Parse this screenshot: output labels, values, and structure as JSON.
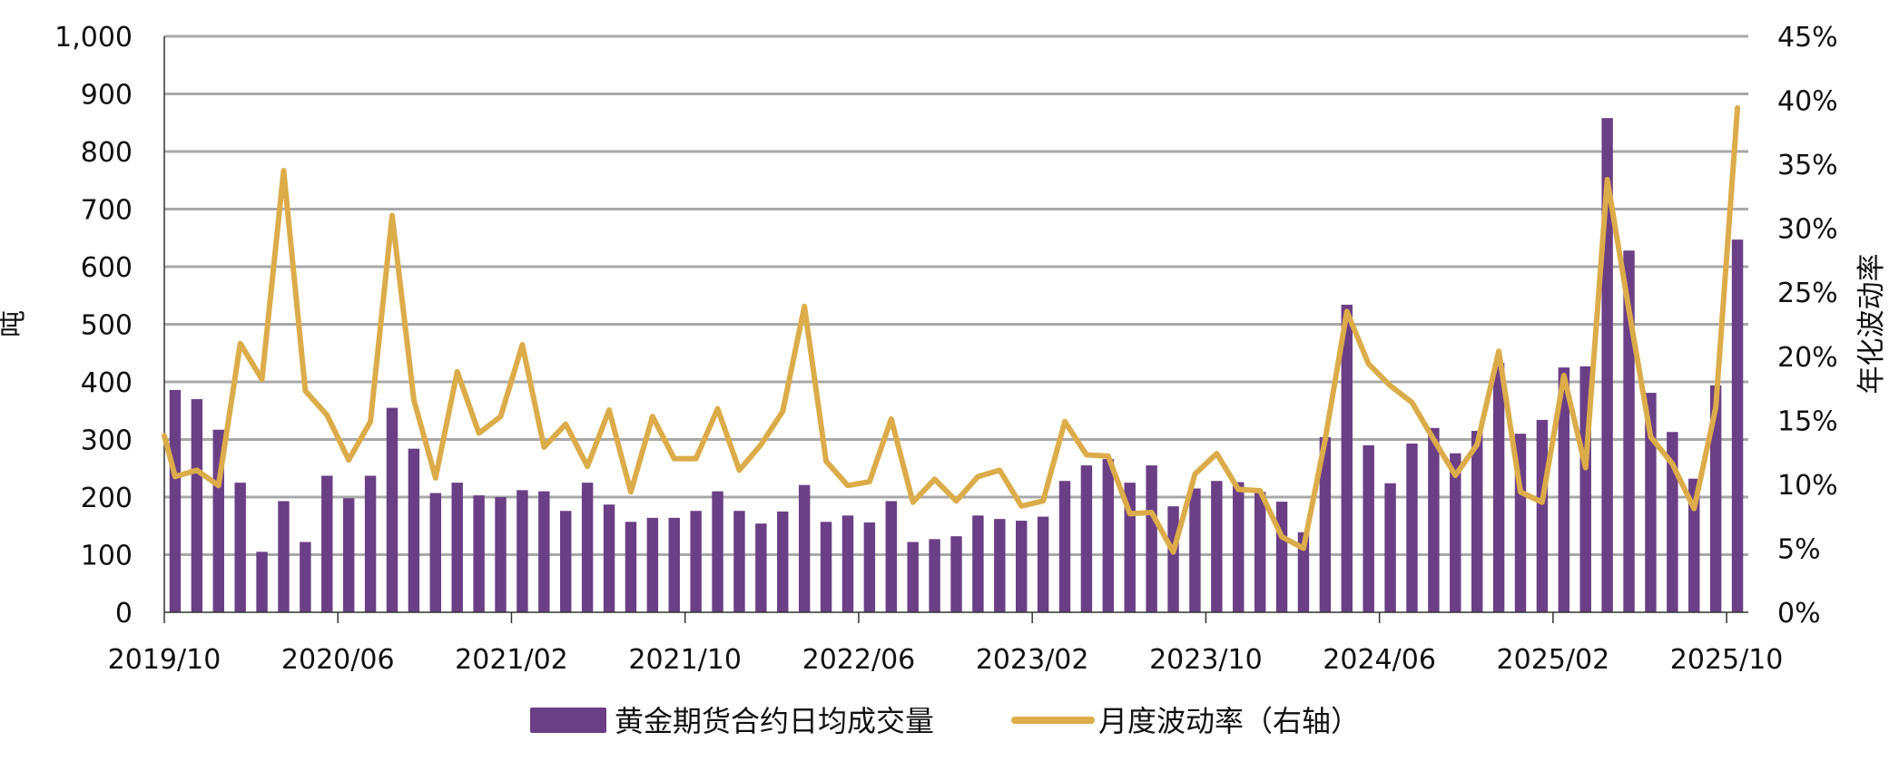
{
  "chart_data": {
    "type": "bar+line",
    "title": "",
    "ylabel_left": "吨",
    "ylabel_right": "年化波动率",
    "ylim_left": [
      0,
      1000
    ],
    "yticks_left": [
      "0",
      "100",
      "200",
      "300",
      "400",
      "500",
      "600",
      "700",
      "800",
      "900",
      "1,000"
    ],
    "ylim_right": [
      0,
      45
    ],
    "yticks_right": [
      "0%",
      "5%",
      "10%",
      "15%",
      "20%",
      "25%",
      "30%",
      "35%",
      "40%",
      "45%"
    ],
    "xtick_labels": [
      "2019/10",
      "2020/06",
      "2021/02",
      "2021/10",
      "2022/06",
      "2023/02",
      "2023/10",
      "2024/06",
      "2025/02",
      "2025/10"
    ],
    "grid": true,
    "legend_position": "bottom",
    "categories": [
      "2019/10",
      "2019/11",
      "2019/12",
      "2020/01",
      "2020/02",
      "2020/03",
      "2020/04",
      "2020/05",
      "2020/06",
      "2020/07",
      "2020/08",
      "2020/09",
      "2020/10",
      "2020/11",
      "2020/12",
      "2021/01",
      "2021/02",
      "2021/03",
      "2021/04",
      "2021/05",
      "2021/06",
      "2021/07",
      "2021/08",
      "2021/09",
      "2021/10",
      "2021/11",
      "2021/12",
      "2022/01",
      "2022/02",
      "2022/03",
      "2022/04",
      "2022/05",
      "2022/06",
      "2022/07",
      "2022/08",
      "2022/09",
      "2022/10",
      "2022/11",
      "2022/12",
      "2023/01",
      "2023/02",
      "2023/03",
      "2023/04",
      "2023/05",
      "2023/06",
      "2023/07",
      "2023/08",
      "2023/09",
      "2023/10",
      "2023/11",
      "2023/12",
      "2024/01",
      "2024/02",
      "2024/03",
      "2024/04",
      "2024/05",
      "2024/06",
      "2024/07",
      "2024/08",
      "2024/09",
      "2024/10",
      "2024/11",
      "2024/12",
      "2025/01",
      "2025/02",
      "2025/03",
      "2025/04",
      "2025/05",
      "2025/06",
      "2025/07",
      "2025/08",
      "2025/09",
      "2025/10"
    ],
    "series": [
      {
        "name": "黄金期货合约日均成交量",
        "type": "bar",
        "axis": "left",
        "color": "#6b3f86",
        "values": [
          386,
          370,
          317,
          225,
          105,
          193,
          122,
          237,
          198,
          237,
          355,
          284,
          207,
          225,
          203,
          200,
          212,
          210,
          176,
          225,
          187,
          157,
          164,
          164,
          176,
          210,
          176,
          154,
          175,
          221,
          157,
          168,
          156,
          193,
          122,
          127,
          132,
          168,
          162,
          159,
          166,
          228,
          255,
          266,
          225,
          255,
          184,
          215,
          228,
          226,
          209,
          192,
          139,
          304,
          534,
          290,
          224,
          293,
          320,
          276,
          315,
          433,
          310,
          334,
          425,
          427,
          858,
          628,
          381,
          313,
          232,
          394,
          647
        ]
      },
      {
        "name": "月度波动率（右轴）",
        "type": "line",
        "axis": "right",
        "unit": "%",
        "color": "#dcac4a",
        "leading_value": 13.8,
        "values": [
          10.6,
          11.1,
          9.9,
          21.0,
          18.2,
          34.5,
          17.3,
          15.4,
          11.9,
          14.9,
          31.0,
          16.6,
          10.5,
          18.8,
          14.0,
          15.3,
          20.9,
          12.9,
          14.7,
          11.4,
          15.8,
          9.4,
          15.3,
          12.0,
          12.0,
          15.9,
          11.1,
          13.1,
          15.7,
          23.9,
          11.8,
          9.9,
          10.2,
          15.1,
          8.6,
          10.4,
          8.7,
          10.6,
          11.1,
          8.3,
          8.7,
          14.9,
          12.3,
          12.2,
          7.7,
          7.8,
          4.7,
          10.8,
          12.4,
          9.6,
          9.5,
          5.9,
          5.0,
          13.5,
          23.5,
          19.4,
          17.7,
          16.4,
          13.5,
          10.7,
          13.1,
          20.4,
          9.4,
          8.6,
          18.5,
          11.3,
          33.8,
          23.6,
          13.7,
          11.6,
          8.1,
          16.0,
          39.4
        ]
      }
    ]
  }
}
